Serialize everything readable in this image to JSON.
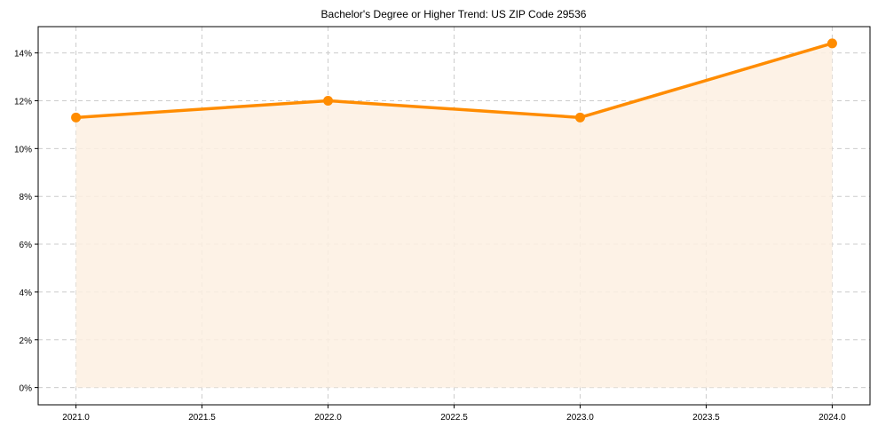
{
  "chart_data": {
    "type": "line",
    "title": "Bachelor's Degree or Higher Trend: US ZIP Code 29536",
    "xlabel": "",
    "ylabel": "",
    "x": [
      2021,
      2022,
      2023,
      2024
    ],
    "series": [
      {
        "name": "Bachelor's Degree or Higher",
        "values": [
          11.3,
          12.0,
          11.3,
          14.4
        ],
        "color": "#ff8c00",
        "fill": "#fdf0e2"
      }
    ],
    "x_ticks": [
      "2021.0",
      "2021.5",
      "2022.0",
      "2022.5",
      "2023.0",
      "2023.5",
      "2024.0"
    ],
    "y_ticks": [
      "0%",
      "2%",
      "4%",
      "6%",
      "8%",
      "10%",
      "12%",
      "14%"
    ],
    "xlim": [
      2020.85,
      2024.15
    ],
    "ylim": [
      -0.72,
      15.1
    ],
    "grid": true,
    "legend": null
  }
}
